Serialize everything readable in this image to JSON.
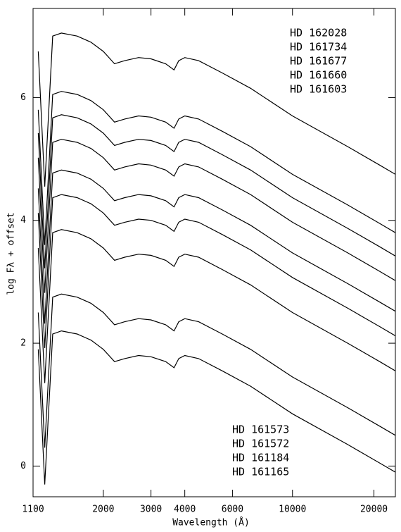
{
  "chart_data": {
    "type": "line",
    "xlabel": "Wavelength (Å)",
    "ylabel": "log Fλ + offset",
    "xscale": "log",
    "xlim": [
      1100,
      24000
    ],
    "ylim": [
      -0.5,
      7.45
    ],
    "xticks": [
      1100,
      2000,
      3000,
      4000,
      6000,
      10000,
      20000
    ],
    "yticks": [
      0,
      2,
      4,
      6
    ],
    "x": [
      1150,
      1215,
      1300,
      1400,
      1600,
      1800,
      2000,
      2200,
      2400,
      2700,
      3000,
      3400,
      3650,
      3800,
      4000,
      4500,
      5500,
      7000,
      10000,
      16000,
      21000,
      24000
    ],
    "series": [
      {
        "name": "HD 162028",
        "color": "#000000",
        "values": [
          6.75,
          4.55,
          7.0,
          7.05,
          7.0,
          6.9,
          6.75,
          6.55,
          6.6,
          6.65,
          6.63,
          6.55,
          6.45,
          6.6,
          6.65,
          6.6,
          6.4,
          6.15,
          5.7,
          5.2,
          4.9,
          4.75
        ]
      },
      {
        "name": "HD 161734",
        "color": "#000000",
        "values": [
          5.8,
          3.6,
          6.05,
          6.1,
          6.05,
          5.95,
          5.8,
          5.6,
          5.65,
          5.7,
          5.68,
          5.6,
          5.5,
          5.65,
          5.7,
          5.65,
          5.45,
          5.2,
          4.75,
          4.25,
          3.95,
          3.8
        ]
      },
      {
        "name": "HD 161677",
        "color": "#000000",
        "values": [
          5.42,
          3.22,
          5.67,
          5.72,
          5.67,
          5.57,
          5.42,
          5.22,
          5.27,
          5.32,
          5.3,
          5.22,
          5.12,
          5.27,
          5.32,
          5.27,
          5.07,
          4.82,
          4.37,
          3.87,
          3.57,
          3.42
        ]
      },
      {
        "name": "HD 161660",
        "color": "#000000",
        "values": [
          5.02,
          2.82,
          5.27,
          5.32,
          5.27,
          5.17,
          5.02,
          4.82,
          4.87,
          4.92,
          4.9,
          4.82,
          4.72,
          4.87,
          4.92,
          4.87,
          4.67,
          4.42,
          3.97,
          3.47,
          3.17,
          3.02
        ]
      },
      {
        "name": "HD 161603",
        "color": "#000000",
        "values": [
          4.52,
          2.32,
          4.77,
          4.82,
          4.77,
          4.67,
          4.52,
          4.32,
          4.37,
          4.42,
          4.4,
          4.32,
          4.22,
          4.37,
          4.42,
          4.37,
          4.17,
          3.92,
          3.47,
          2.97,
          2.67,
          2.52
        ]
      },
      {
        "name": "HD 161573",
        "color": "#000000",
        "values": [
          4.12,
          1.92,
          4.37,
          4.42,
          4.37,
          4.27,
          4.12,
          3.92,
          3.97,
          4.02,
          4.0,
          3.92,
          3.82,
          3.97,
          4.02,
          3.97,
          3.77,
          3.52,
          3.07,
          2.57,
          2.27,
          2.12
        ]
      },
      {
        "name": "HD 161572",
        "color": "#000000",
        "values": [
          3.55,
          1.35,
          3.8,
          3.85,
          3.8,
          3.7,
          3.55,
          3.35,
          3.4,
          3.45,
          3.43,
          3.35,
          3.25,
          3.4,
          3.45,
          3.4,
          3.2,
          2.95,
          2.5,
          2.0,
          1.7,
          1.55
        ]
      },
      {
        "name": "HD 161184",
        "color": "#000000",
        "values": [
          2.5,
          0.3,
          2.75,
          2.8,
          2.75,
          2.65,
          2.5,
          2.3,
          2.35,
          2.4,
          2.38,
          2.3,
          2.2,
          2.35,
          2.4,
          2.35,
          2.15,
          1.9,
          1.45,
          0.95,
          0.65,
          0.5
        ]
      },
      {
        "name": "HD 161165",
        "color": "#000000",
        "values": [
          1.9,
          -0.3,
          2.15,
          2.2,
          2.15,
          2.05,
          1.9,
          1.7,
          1.75,
          1.8,
          1.78,
          1.7,
          1.6,
          1.75,
          1.8,
          1.75,
          1.55,
          1.3,
          0.85,
          0.35,
          0.05,
          -0.1
        ]
      }
    ]
  }
}
